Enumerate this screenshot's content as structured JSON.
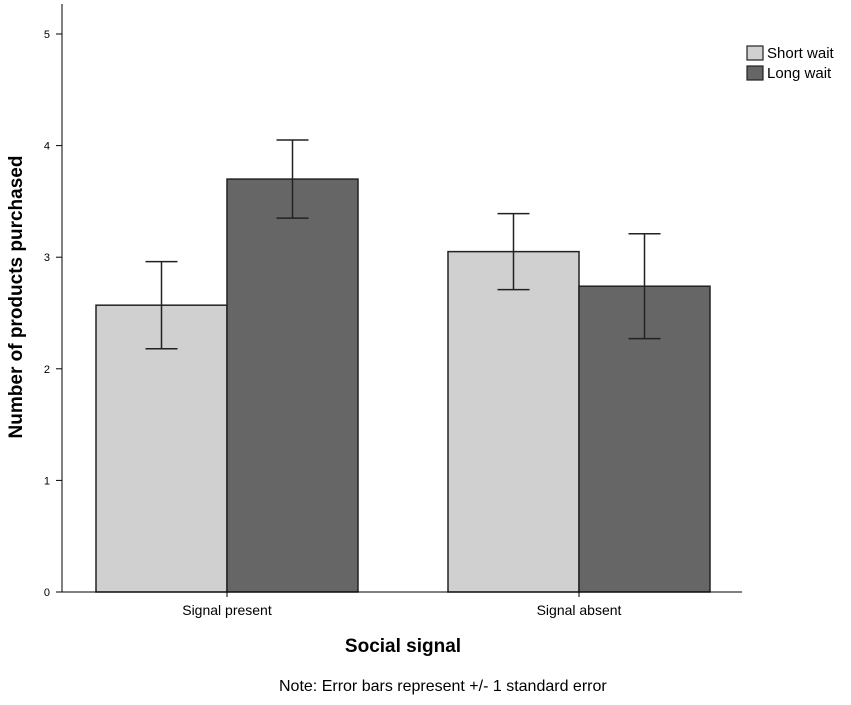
{
  "chart_data": {
    "type": "bar",
    "categories": [
      "Signal present",
      "Signal absent"
    ],
    "series": [
      {
        "name": "Short wait",
        "color": "#d0d0d0",
        "values": [
          2.57,
          3.05
        ],
        "error": [
          0.39,
          0.34
        ]
      },
      {
        "name": "Long wait",
        "color": "#666666",
        "values": [
          3.7,
          2.74
        ],
        "error": [
          0.35,
          0.47
        ]
      }
    ],
    "xlabel": "Social signal",
    "ylabel": "Number of products purchased",
    "ylim": [
      0,
      5
    ],
    "yticks": [
      "0",
      "1",
      "2",
      "3",
      "4",
      "5"
    ],
    "grid": false,
    "legend_position": "top-right"
  },
  "note": "Note: Error bars represent +/- 1 standard error"
}
